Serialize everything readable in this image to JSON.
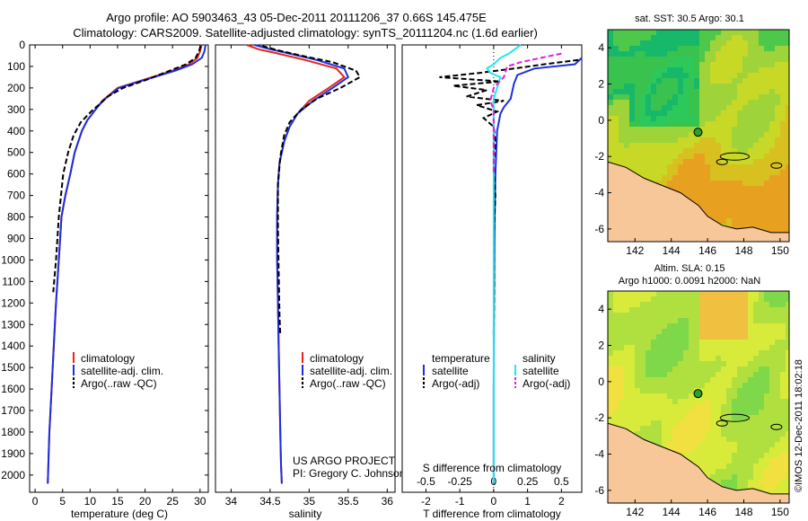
{
  "title": {
    "line1": "Argo profile: AO 5903463_43 05-Dec-2011 20111206_37 0.66S 145.475E",
    "line2": "Climatology: CARS2009. Satellite-adjusted climatology: synTS_20111204.nc (1.6d earlier)"
  },
  "depth_ticks": [
    "0",
    "100",
    "200",
    "300",
    "400",
    "500",
    "600",
    "700",
    "800",
    "900",
    "1000",
    "1100",
    "1200",
    "1300",
    "1400",
    "1500",
    "1600",
    "1700",
    "1800",
    "1900",
    "2000"
  ],
  "colors": {
    "climatology": "#e8231c",
    "satellite": "#1c2fe0",
    "argo": "#000000",
    "salinity_satellite": "#22e8ee",
    "salinity_argo": "#e020e0",
    "land": "#f7c79a"
  },
  "panels": {
    "temperature": {
      "xlabel": "temperature (deg C)",
      "xticks": [
        "0",
        "5",
        "10",
        "15",
        "20",
        "25",
        "30"
      ],
      "legend": [
        "climatology",
        "satellite-adj. clim.",
        "Argo(..raw -QC)"
      ]
    },
    "salinity": {
      "xlabel": "salinity",
      "xticks": [
        "34",
        "34.5",
        "35",
        "35.5",
        "36"
      ],
      "legend": [
        "climatology",
        "satellite-adj. clim.",
        "Argo(..raw -QC)"
      ],
      "credit1": "US ARGO PROJECT",
      "credit2": "PI: Gregory C. Johnson"
    },
    "difference": {
      "xlabel": "T difference from climatology",
      "slabel": "S difference from climatology",
      "s_ticks": [
        "-0.5",
        "-0.25",
        "0",
        "0.25",
        "0.5"
      ],
      "t_ticks": [
        "-2",
        "-1",
        "0",
        "1",
        "2"
      ],
      "legend_t_head": "temperature",
      "legend_s_head": "salinity",
      "legend_t": [
        "satellite",
        "Argo(-adj)"
      ],
      "legend_s": [
        "satellite",
        "Argo(-adj)"
      ]
    },
    "sst_map": {
      "title": "sat. SST: 30.5  Argo: 30.1",
      "yticks": [
        "4",
        "2",
        "0",
        "-2",
        "-4",
        "-6"
      ],
      "xticks": [
        "142",
        "144",
        "146",
        "148",
        "150"
      ]
    },
    "sla_map": {
      "title1": "Altim. SLA: 0.15",
      "title2": "Argo h1000: 0.0091 h2000: NaN",
      "yticks": [
        "4",
        "2",
        "0",
        "-2",
        "-4",
        "-6"
      ],
      "xticks": [
        "142",
        "144",
        "146",
        "148",
        "150"
      ]
    }
  },
  "footer": "©IMOS 12-Dec-2011 18:02:18",
  "chart_data": [
    {
      "type": "line",
      "xlabel": "temperature (deg C)",
      "ylabel": "",
      "xlim": [
        -1,
        31.5
      ],
      "ylim": [
        2080,
        0
      ],
      "series": [
        {
          "name": "climatology",
          "x": [
            30.3,
            30.0,
            29.5,
            28.0,
            25.0,
            20.0,
            15.0,
            12.2,
            11.0,
            9.5,
            8.5,
            7.2,
            6.4,
            5.5,
            4.8,
            4.3,
            3.8,
            3.4,
            3.0,
            2.6,
            2.3
          ],
          "y": [
            0,
            30,
            60,
            90,
            120,
            160,
            200,
            260,
            300,
            350,
            400,
            500,
            600,
            700,
            800,
            1000,
            1200,
            1400,
            1600,
            1800,
            2040
          ]
        },
        {
          "name": "satellite-adj. clim.",
          "x": [
            31.0,
            30.8,
            30.3,
            28.6,
            25.5,
            20.3,
            15.2,
            12.3,
            11.0,
            9.5,
            8.5,
            7.2,
            6.4,
            5.5,
            4.8,
            4.3,
            3.8,
            3.4,
            3.0,
            2.6,
            2.3
          ],
          "y": [
            0,
            30,
            60,
            90,
            120,
            160,
            200,
            260,
            300,
            350,
            400,
            500,
            600,
            700,
            800,
            1000,
            1200,
            1400,
            1600,
            1800,
            2040
          ]
        },
        {
          "name": "Argo(..raw -QC)",
          "x": [
            30.1,
            29.8,
            29.2,
            27.5,
            24.5,
            20.5,
            16.0,
            13.2,
            12.0,
            10.6,
            9.8,
            8.3,
            7.0,
            6.0,
            5.1,
            4.3,
            3.8,
            3.3
          ],
          "y": [
            5,
            30,
            60,
            90,
            120,
            160,
            200,
            240,
            270,
            300,
            320,
            360,
            420,
            500,
            600,
            800,
            1000,
            1150
          ]
        }
      ]
    },
    {
      "type": "line",
      "xlabel": "salinity",
      "ylabel": "",
      "xlim": [
        33.8,
        36.1
      ],
      "ylim": [
        2080,
        0
      ],
      "series": [
        {
          "name": "climatology",
          "x": [
            34.2,
            34.35,
            34.6,
            34.95,
            35.35,
            35.45,
            35.25,
            35.0,
            34.85,
            34.75,
            34.68,
            34.62,
            34.6,
            34.59,
            34.59,
            34.6,
            34.61,
            34.62,
            34.63,
            34.64,
            34.65
          ],
          "y": [
            0,
            20,
            40,
            70,
            110,
            150,
            200,
            260,
            320,
            380,
            450,
            550,
            650,
            800,
            1000,
            1200,
            1400,
            1600,
            1800,
            1950,
            2040
          ]
        },
        {
          "name": "satellite-adj. clim.",
          "x": [
            34.3,
            34.5,
            34.75,
            35.1,
            35.45,
            35.5,
            35.3,
            35.05,
            34.85,
            34.75,
            34.68,
            34.62,
            34.6,
            34.59,
            34.59,
            34.6,
            34.61,
            34.62,
            34.63,
            34.64,
            34.65
          ],
          "y": [
            0,
            20,
            40,
            70,
            110,
            150,
            200,
            260,
            320,
            380,
            450,
            550,
            650,
            800,
            1000,
            1200,
            1400,
            1600,
            1800,
            1950,
            2040
          ]
        },
        {
          "name": "Argo(..raw -QC)",
          "x": [
            34.4,
            34.6,
            34.9,
            35.3,
            35.6,
            35.65,
            35.4,
            35.1,
            34.9,
            34.75,
            34.68,
            34.63,
            34.6,
            34.6,
            34.61,
            34.62,
            34.63
          ],
          "y": [
            5,
            25,
            50,
            80,
            120,
            150,
            200,
            250,
            300,
            360,
            420,
            520,
            650,
            850,
            1050,
            1250,
            1350
          ]
        }
      ]
    },
    {
      "type": "line",
      "xlabel": "T difference from climatology",
      "ylabel": "",
      "xlim": [
        -2.7,
        2.6
      ],
      "ylim": [
        2080,
        0
      ],
      "series": [
        {
          "name": "temperature satellite",
          "x": [
            2.8,
            2.4,
            1.2,
            0.7,
            0.6,
            0.5,
            0.3,
            0.2,
            0.1,
            0.05,
            0.03,
            0.01,
            0.0,
            0.0
          ],
          "y": [
            60,
            90,
            110,
            140,
            180,
            250,
            290,
            320,
            400,
            600,
            800,
            1200,
            1600,
            2040
          ]
        },
        {
          "name": "temperature Argo(-adj)",
          "x": [
            2.5,
            1.5,
            0.6,
            -0.4,
            -1.6,
            0.2,
            -1.2,
            -0.2,
            -0.8,
            0.3,
            -0.5,
            0.1,
            -0.3,
            0.0,
            0.05,
            0.0,
            0.05,
            0.0,
            0.02,
            0.0
          ],
          "y": [
            70,
            90,
            110,
            130,
            150,
            170,
            190,
            210,
            240,
            260,
            280,
            310,
            340,
            380,
            450,
            550,
            700,
            900,
            1100,
            1350
          ]
        },
        {
          "name": "salinity satellite",
          "x": [
            0.8,
            0.45,
            0.2,
            0.0,
            -0.2,
            -0.1,
            0.2,
            0.0,
            0.0,
            0.0,
            0.0
          ],
          "y": [
            0,
            40,
            60,
            90,
            110,
            130,
            150,
            250,
            400,
            1000,
            2040
          ]
        },
        {
          "name": "salinity Argo(-adj)",
          "x": [
            2.0,
            1.4,
            0.8,
            0.4,
            0.3,
            0.0,
            -0.1,
            0.0,
            0.0,
            0.0
          ],
          "y": [
            40,
            60,
            80,
            100,
            150,
            200,
            260,
            300,
            400,
            600
          ]
        }
      ]
    },
    {
      "type": "heatmap",
      "title": "sat. SST: 30.5  Argo: 30.1",
      "xlim": [
        140.5,
        150.5
      ],
      "ylim": [
        -6.7,
        5.0
      ],
      "xticks": [
        142,
        144,
        146,
        148,
        150
      ],
      "yticks": [
        4,
        2,
        0,
        -2,
        -4,
        -6
      ],
      "marker": {
        "x": 145.475,
        "y": -0.66
      }
    },
    {
      "type": "heatmap",
      "title": "Altim. SLA: 0.15",
      "xlim": [
        140.5,
        150.5
      ],
      "ylim": [
        -6.7,
        5.0
      ],
      "xticks": [
        142,
        144,
        146,
        148,
        150
      ],
      "yticks": [
        4,
        2,
        0,
        -2,
        -4,
        -6
      ],
      "marker": {
        "x": 145.475,
        "y": -0.66
      }
    }
  ]
}
